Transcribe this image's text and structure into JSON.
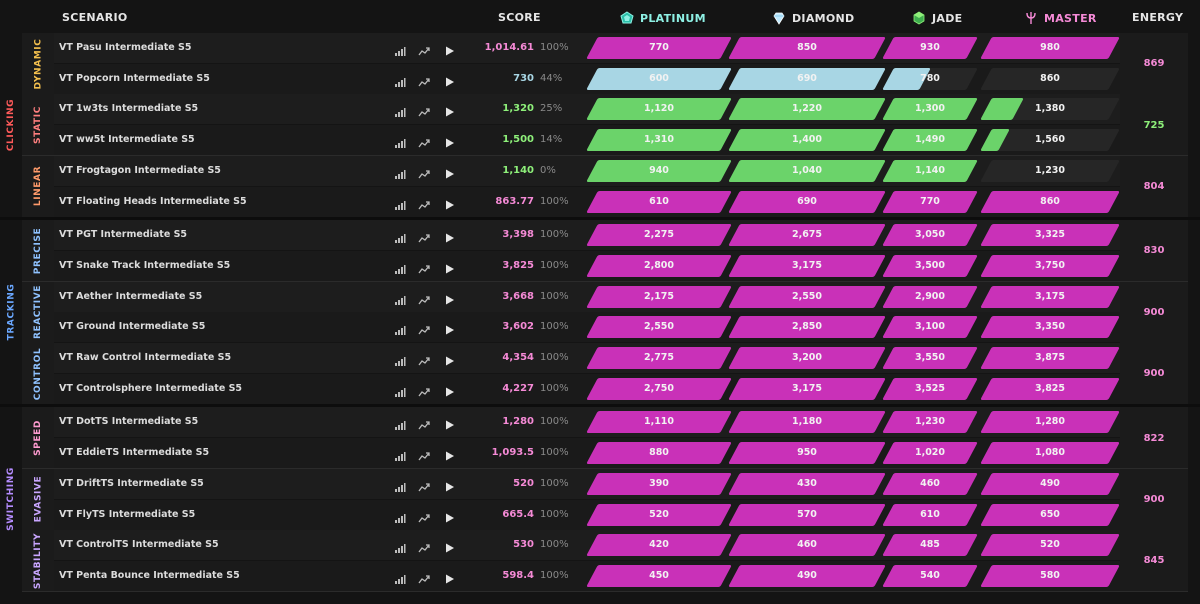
{
  "header": {
    "scenario": "SCENARIO",
    "score": "SCORE",
    "energy": "ENERGY",
    "ranks": [
      {
        "label": "PLATINUM",
        "color": "#8ef0e4",
        "icon": "platinum-gem-icon"
      },
      {
        "label": "DIAMOND",
        "color": "#e6e6e6",
        "icon": "diamond-gem-icon"
      },
      {
        "label": "JADE",
        "color": "#e6e6e6",
        "icon": "jade-gem-icon"
      },
      {
        "label": "MASTER",
        "color": "#f58ad6",
        "icon": "master-trident-icon"
      }
    ]
  },
  "colors": {
    "magenta": "#c931b8",
    "green": "#6bd36a",
    "lightblue": "#a8d6e4",
    "empty": "#262626",
    "clicking": "#ff5a5a",
    "tracking": "#6aa7ff",
    "switching": "#b58cff"
  },
  "categories": [
    {
      "label": "CLICKING",
      "color": "#ff5a5a",
      "subs": [
        {
          "label": "DYNAMIC",
          "color": "#f4c04e",
          "energy": "869",
          "energy_color": "#f58ad6",
          "rows": [
            {
              "name": "VT Pasu Intermediate S5",
              "score": "1,014.61",
              "score_color": "#f58ad6",
              "pct": "100%",
              "fill": "magenta",
              "fill_fraction": 1.0,
              "thresholds": [
                "770",
                "850",
                "930",
                "980"
              ]
            },
            {
              "name": "VT Popcorn Intermediate S5",
              "score": "730",
              "score_color": "#a8d6e4",
              "pct": "44%",
              "fill": "lightblue",
              "fill_fraction": 0.44,
              "thresholds": [
                "600",
                "690",
                "780",
                "860"
              ]
            }
          ]
        },
        {
          "label": "STATIC",
          "color": "#ff7f7f",
          "energy": "725",
          "energy_color": "#8ef07a",
          "rows": [
            {
              "name": "VT 1w3ts Intermediate S5",
              "score": "1,320",
              "score_color": "#8ef07a",
              "pct": "25%",
              "fill": "green",
              "fill_fraction": 0.25,
              "thresholds": [
                "1,120",
                "1,220",
                "1,300",
                "1,380"
              ]
            },
            {
              "name": "VT ww5t Intermediate S5",
              "score": "1,500",
              "score_color": "#8ef07a",
              "pct": "14%",
              "fill": "green",
              "fill_fraction": 0.14,
              "thresholds": [
                "1,310",
                "1,400",
                "1,490",
                "1,560"
              ]
            }
          ]
        },
        {
          "label": "LINEAR",
          "color": "#ff9b6b",
          "energy": "804",
          "energy_color": "#f58ad6",
          "rows": [
            {
              "name": "VT Frogtagon Intermediate S5",
              "score": "1,140",
              "score_color": "#8ef07a",
              "pct": "0%",
              "fill": "green",
              "fill_fraction": 0.0,
              "thresholds": [
                "940",
                "1,040",
                "1,140",
                "1,230"
              ]
            },
            {
              "name": "VT Floating Heads Intermediate S5",
              "score": "863.77",
              "score_color": "#f58ad6",
              "pct": "100%",
              "fill": "magenta",
              "fill_fraction": 1.0,
              "thresholds": [
                "610",
                "690",
                "770",
                "860"
              ]
            }
          ]
        }
      ]
    },
    {
      "label": "TRACKING",
      "color": "#6aa7ff",
      "subs": [
        {
          "label": "PRECISE",
          "color": "#8fc2ff",
          "energy": "830",
          "energy_color": "#f58ad6",
          "rows": [
            {
              "name": "VT PGT Intermediate S5",
              "score": "3,398",
              "score_color": "#f58ad6",
              "pct": "100%",
              "fill": "magenta",
              "fill_fraction": 1.0,
              "thresholds": [
                "2,275",
                "2,675",
                "3,050",
                "3,325"
              ]
            },
            {
              "name": "VT Snake Track Intermediate S5",
              "score": "3,825",
              "score_color": "#f58ad6",
              "pct": "100%",
              "fill": "magenta",
              "fill_fraction": 1.0,
              "thresholds": [
                "2,800",
                "3,175",
                "3,500",
                "3,750"
              ]
            }
          ]
        },
        {
          "label": "REACTIVE",
          "color": "#8fc2ff",
          "energy": "900",
          "energy_color": "#f58ad6",
          "rows": [
            {
              "name": "VT Aether Intermediate S5",
              "score": "3,668",
              "score_color": "#f58ad6",
              "pct": "100%",
              "fill": "magenta",
              "fill_fraction": 1.0,
              "thresholds": [
                "2,175",
                "2,550",
                "2,900",
                "3,175"
              ]
            },
            {
              "name": "VT Ground Intermediate S5",
              "score": "3,602",
              "score_color": "#f58ad6",
              "pct": "100%",
              "fill": "magenta",
              "fill_fraction": 1.0,
              "thresholds": [
                "2,550",
                "2,850",
                "3,100",
                "3,350"
              ]
            }
          ]
        },
        {
          "label": "CONTROL",
          "color": "#8fc2ff",
          "energy": "900",
          "energy_color": "#f58ad6",
          "rows": [
            {
              "name": "VT Raw Control Intermediate S5",
              "score": "4,354",
              "score_color": "#f58ad6",
              "pct": "100%",
              "fill": "magenta",
              "fill_fraction": 1.0,
              "thresholds": [
                "2,775",
                "3,200",
                "3,550",
                "3,875"
              ]
            },
            {
              "name": "VT Controlsphere Intermediate S5",
              "score": "4,227",
              "score_color": "#f58ad6",
              "pct": "100%",
              "fill": "magenta",
              "fill_fraction": 1.0,
              "thresholds": [
                "2,750",
                "3,175",
                "3,525",
                "3,825"
              ]
            }
          ]
        }
      ]
    },
    {
      "label": "SWITCHING",
      "color": "#b58cff",
      "subs": [
        {
          "label": "SPEED",
          "color": "#ff9bd0",
          "energy": "822",
          "energy_color": "#f58ad6",
          "rows": [
            {
              "name": "VT DotTS Intermediate S5",
              "score": "1,280",
              "score_color": "#f58ad6",
              "pct": "100%",
              "fill": "magenta",
              "fill_fraction": 1.0,
              "thresholds": [
                "1,110",
                "1,180",
                "1,230",
                "1,280"
              ]
            },
            {
              "name": "VT EddieTS Intermediate S5",
              "score": "1,093.5",
              "score_color": "#f58ad6",
              "pct": "100%",
              "fill": "magenta",
              "fill_fraction": 1.0,
              "thresholds": [
                "880",
                "950",
                "1,020",
                "1,080"
              ]
            }
          ]
        },
        {
          "label": "EVASIVE",
          "color": "#c9a6ff",
          "energy": "900",
          "energy_color": "#f58ad6",
          "rows": [
            {
              "name": "VT DriftTS Intermediate S5",
              "score": "520",
              "score_color": "#f58ad6",
              "pct": "100%",
              "fill": "magenta",
              "fill_fraction": 1.0,
              "thresholds": [
                "390",
                "430",
                "460",
                "490"
              ]
            },
            {
              "name": "VT FlyTS Intermediate S5",
              "score": "665.4",
              "score_color": "#f58ad6",
              "pct": "100%",
              "fill": "magenta",
              "fill_fraction": 1.0,
              "thresholds": [
                "520",
                "570",
                "610",
                "650"
              ]
            }
          ]
        },
        {
          "label": "STABILITY",
          "color": "#c9a6ff",
          "energy": "845",
          "energy_color": "#f58ad6",
          "rows": [
            {
              "name": "VT ControlTS Intermediate S5",
              "score": "530",
              "score_color": "#f58ad6",
              "pct": "100%",
              "fill": "magenta",
              "fill_fraction": 1.0,
              "thresholds": [
                "420",
                "460",
                "485",
                "520"
              ]
            },
            {
              "name": "VT Penta Bounce Intermediate S5",
              "score": "598.4",
              "score_color": "#f58ad6",
              "pct": "100%",
              "fill": "magenta",
              "fill_fraction": 1.0,
              "thresholds": [
                "450",
                "490",
                "540",
                "580"
              ]
            }
          ]
        }
      ]
    }
  ]
}
